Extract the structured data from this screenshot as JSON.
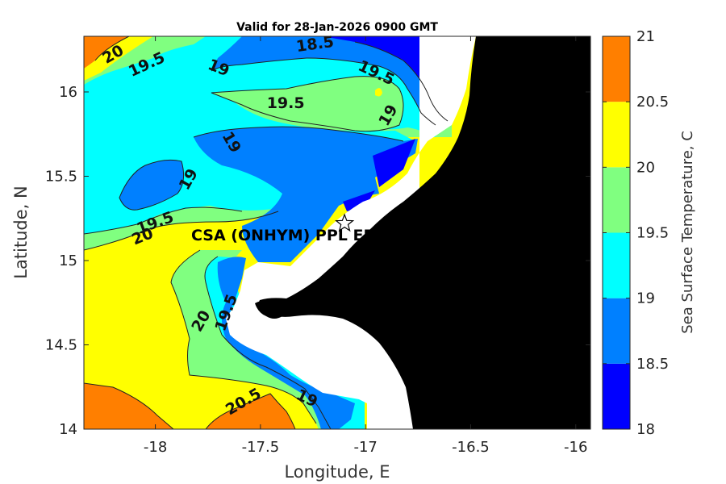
{
  "title": "Valid for 28-Jan-2026 0900 GMT",
  "xlabel": "Longitude, E",
  "ylabel": "Latitude, N",
  "colorbar_label": "Sea Surface Temperature, C",
  "x_ticks": [
    "-18",
    "-17.5",
    "-17",
    "-16.5",
    "-16"
  ],
  "y_ticks": [
    "16",
    "15.5",
    "15",
    "14.5",
    "14"
  ],
  "colorbar_ticks": [
    "21",
    "20.5",
    "20",
    "19.5",
    "19",
    "18.5",
    "18"
  ],
  "colorbar_colors": [
    "#ff7f00",
    "#ffff00",
    "#80ff80",
    "#00ffff",
    "#0080ff",
    "#0000ff"
  ],
  "station": {
    "label": "CSA (ONHYM) PPL EP",
    "lon": -17.1,
    "lat": 15.22,
    "marker": "star-icon"
  },
  "contour_labels": [
    {
      "text": "20",
      "lon": -18.2,
      "lat": 16.22
    },
    {
      "text": "19.5",
      "lon": -18.04,
      "lat": 16.16
    },
    {
      "text": "19",
      "lon": -17.7,
      "lat": 16.14
    },
    {
      "text": "18.5",
      "lon": -17.24,
      "lat": 16.28
    },
    {
      "text": "19.5",
      "lon": -16.95,
      "lat": 16.11
    },
    {
      "text": "19.5",
      "lon": -17.38,
      "lat": 15.93
    },
    {
      "text": "19",
      "lon": -16.89,
      "lat": 15.86
    },
    {
      "text": "19",
      "lon": -17.64,
      "lat": 15.7
    },
    {
      "text": "19",
      "lon": -17.84,
      "lat": 15.48
    },
    {
      "text": "19.5",
      "lon": -18.0,
      "lat": 15.22
    },
    {
      "text": "20",
      "lon": -18.06,
      "lat": 15.14
    },
    {
      "text": "20",
      "lon": -17.78,
      "lat": 14.64
    },
    {
      "text": "19.5",
      "lon": -17.66,
      "lat": 14.69
    },
    {
      "text": "19",
      "lon": -17.28,
      "lat": 14.18
    },
    {
      "text": "20.5",
      "lon": -17.58,
      "lat": 14.16
    }
  ],
  "map_data": {
    "type": "contourf",
    "variable": "Sea Surface Temperature",
    "units": "C",
    "xlim": [
      -18.34,
      -15.93
    ],
    "ylim": [
      14.0,
      16.33
    ],
    "clim": [
      18,
      21
    ],
    "levels": [
      18,
      18.5,
      19,
      19.5,
      20,
      20.5,
      21
    ],
    "land_color": "#000000"
  }
}
